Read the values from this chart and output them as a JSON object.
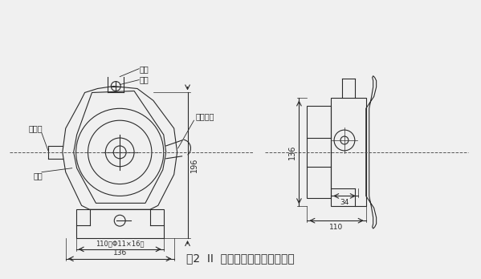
{
  "bg_color": "#f0f0f0",
  "line_color": "#2a2a2a",
  "title": "图2  II  型拉绳开关外形结构简图",
  "title_fontsize": 10,
  "labels": {
    "la_huan": "拉环",
    "bai_bi": "摆臂",
    "chu_xian": "出线口",
    "ke_ti": "壳体",
    "fu_wei": "复位手柄"
  },
  "dim_196": "196",
  "dim_110_bolt": "110（Φ11×16）",
  "dim_136_left": "136",
  "dim_136_right": "136",
  "dim_110_right": "110",
  "dim_34": "34"
}
